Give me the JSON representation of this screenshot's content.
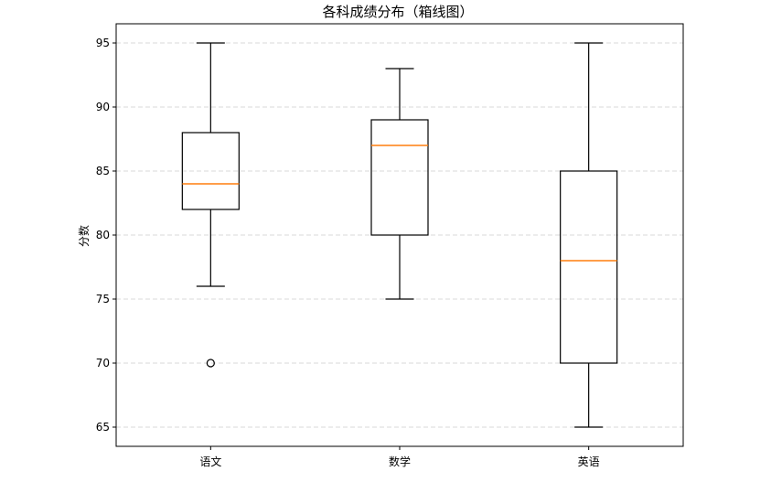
{
  "chart_data": {
    "type": "boxplot",
    "title": "各科成绩分布（箱线图）",
    "xlabel": "",
    "ylabel": "分数",
    "ylim": [
      63.5,
      96.5
    ],
    "yticks": [
      65,
      70,
      75,
      80,
      85,
      90,
      95
    ],
    "ytick_labels": [
      "65",
      "70",
      "75",
      "80",
      "85",
      "90",
      "95"
    ],
    "grid": {
      "y": true,
      "x": false,
      "style": "dashed"
    },
    "categories": [
      "语文",
      "数学",
      "英语"
    ],
    "boxes": [
      {
        "whisker_low": 76,
        "q1": 82,
        "median": 84,
        "q3": 88,
        "whisker_high": 95,
        "outliers": [
          70
        ]
      },
      {
        "whisker_low": 75,
        "q1": 80,
        "median": 87,
        "q3": 89,
        "whisker_high": 93,
        "outliers": []
      },
      {
        "whisker_low": 65,
        "q1": 70,
        "median": 78,
        "q3": 85,
        "whisker_high": 95,
        "outliers": []
      }
    ],
    "colors": {
      "box": "#000000",
      "median": "#ff7f0e",
      "grid": "#d9d9d9"
    }
  }
}
